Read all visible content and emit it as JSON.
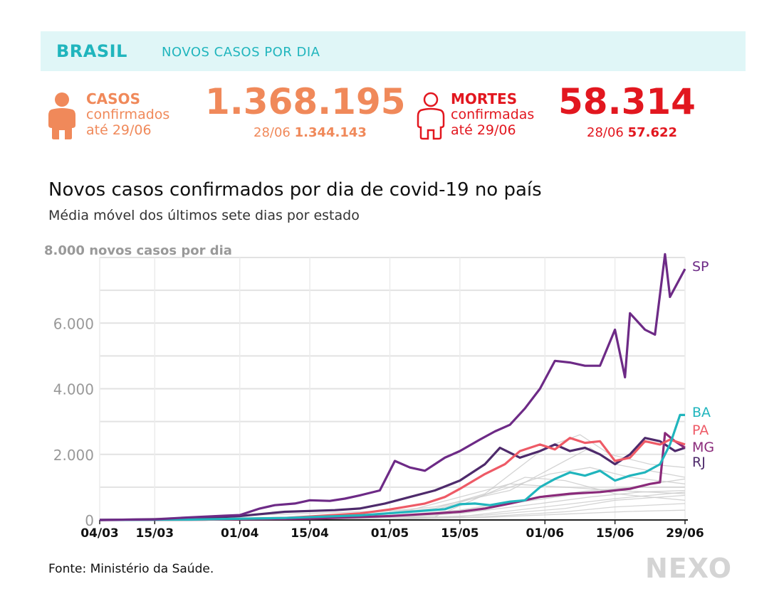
{
  "header": {
    "country": "BRASIL",
    "subtitle": "NOVOS CASOS POR DIA"
  },
  "cases": {
    "label": "CASOS",
    "line2": "confirmados",
    "line3": "até 29/06",
    "total": "1.368.195",
    "prev_date": "28/06",
    "prev_value": "1.344.143",
    "color": "#f0895a",
    "icon": "person-icon"
  },
  "deaths": {
    "label": "MORTES",
    "line2": "confirmadas",
    "line3": "até 29/06",
    "total": "58.314",
    "prev_date": "28/06",
    "prev_value": "57.622",
    "color": "#e2171f",
    "icon": "person-outline-icon"
  },
  "chart": {
    "title": "Novos casos confirmados por dia de covid-19 no país",
    "subtitle": "Média móvel dos últimos sete dias por estado"
  },
  "chart_data": {
    "type": "line",
    "y_unit_label": "8.000 novos casos por dia",
    "ylim": [
      0,
      8000
    ],
    "yticks": [
      {
        "value": 0,
        "label": "0"
      },
      {
        "value": 2000,
        "label": "2.000"
      },
      {
        "value": 4000,
        "label": "4.000"
      },
      {
        "value": 6000,
        "label": "6.000"
      },
      {
        "value": 8000,
        "label": "8.000 novos casos por dia"
      }
    ],
    "x_range": [
      "2020-03-04",
      "2020-06-29"
    ],
    "xticks": [
      {
        "date": "2020-03-04",
        "label": "04/03"
      },
      {
        "date": "2020-03-15",
        "label": "15/03"
      },
      {
        "date": "2020-04-01",
        "label": "01/04"
      },
      {
        "date": "2020-04-15",
        "label": "15/04"
      },
      {
        "date": "2020-05-01",
        "label": "01/05"
      },
      {
        "date": "2020-05-15",
        "label": "15/05"
      },
      {
        "date": "2020-06-01",
        "label": "01/06"
      },
      {
        "date": "2020-06-15",
        "label": "15/06"
      },
      {
        "date": "2020-06-29",
        "label": "29/06"
      }
    ],
    "grid": true,
    "series": [
      {
        "name": "SP",
        "color": "#6d2a86",
        "label_value": 7650,
        "points": [
          [
            "2020-03-04",
            0
          ],
          [
            "2020-03-15",
            20
          ],
          [
            "2020-03-22",
            80
          ],
          [
            "2020-03-29",
            130
          ],
          [
            "2020-04-01",
            150
          ],
          [
            "2020-04-05",
            350
          ],
          [
            "2020-04-08",
            450
          ],
          [
            "2020-04-12",
            500
          ],
          [
            "2020-04-15",
            600
          ],
          [
            "2020-04-19",
            580
          ],
          [
            "2020-04-22",
            650
          ],
          [
            "2020-04-25",
            750
          ],
          [
            "2020-04-29",
            900
          ],
          [
            "2020-05-02",
            1800
          ],
          [
            "2020-05-05",
            1600
          ],
          [
            "2020-05-08",
            1500
          ],
          [
            "2020-05-12",
            1900
          ],
          [
            "2020-05-15",
            2100
          ],
          [
            "2020-05-19",
            2450
          ],
          [
            "2020-05-22",
            2700
          ],
          [
            "2020-05-25",
            2900
          ],
          [
            "2020-05-28",
            3400
          ],
          [
            "2020-05-31",
            4000
          ],
          [
            "2020-06-03",
            4850
          ],
          [
            "2020-06-06",
            4800
          ],
          [
            "2020-06-09",
            4700
          ],
          [
            "2020-06-12",
            4700
          ],
          [
            "2020-06-15",
            5800
          ],
          [
            "2020-06-17",
            4350
          ],
          [
            "2020-06-18",
            6300
          ],
          [
            "2020-06-21",
            5800
          ],
          [
            "2020-06-23",
            5650
          ],
          [
            "2020-06-25",
            8100
          ],
          [
            "2020-06-26",
            6800
          ],
          [
            "2020-06-29",
            7650
          ]
        ]
      },
      {
        "name": "BA",
        "color": "#20b5bd",
        "label_value": 3200,
        "points": [
          [
            "2020-03-04",
            0
          ],
          [
            "2020-03-22",
            10
          ],
          [
            "2020-04-10",
            60
          ],
          [
            "2020-04-25",
            140
          ],
          [
            "2020-05-05",
            250
          ],
          [
            "2020-05-12",
            330
          ],
          [
            "2020-05-15",
            480
          ],
          [
            "2020-05-18",
            500
          ],
          [
            "2020-05-21",
            450
          ],
          [
            "2020-05-25",
            560
          ],
          [
            "2020-05-28",
            600
          ],
          [
            "2020-05-31",
            1000
          ],
          [
            "2020-06-03",
            1250
          ],
          [
            "2020-06-06",
            1450
          ],
          [
            "2020-06-09",
            1350
          ],
          [
            "2020-06-12",
            1500
          ],
          [
            "2020-06-15",
            1200
          ],
          [
            "2020-06-18",
            1350
          ],
          [
            "2020-06-21",
            1450
          ],
          [
            "2020-06-24",
            1700
          ],
          [
            "2020-06-26",
            2300
          ],
          [
            "2020-06-28",
            3200
          ],
          [
            "2020-06-29",
            3200
          ]
        ]
      },
      {
        "name": "PA",
        "color": "#ee5a66",
        "label_value": 2300,
        "points": [
          [
            "2020-03-04",
            0
          ],
          [
            "2020-03-25",
            10
          ],
          [
            "2020-04-10",
            60
          ],
          [
            "2020-04-25",
            200
          ],
          [
            "2020-05-01",
            320
          ],
          [
            "2020-05-08",
            500
          ],
          [
            "2020-05-12",
            700
          ],
          [
            "2020-05-15",
            950
          ],
          [
            "2020-05-20",
            1400
          ],
          [
            "2020-05-24",
            1700
          ],
          [
            "2020-05-27",
            2100
          ],
          [
            "2020-05-31",
            2300
          ],
          [
            "2020-06-03",
            2150
          ],
          [
            "2020-06-06",
            2500
          ],
          [
            "2020-06-09",
            2350
          ],
          [
            "2020-06-12",
            2400
          ],
          [
            "2020-06-15",
            1800
          ],
          [
            "2020-06-18",
            1900
          ],
          [
            "2020-06-21",
            2400
          ],
          [
            "2020-06-24",
            2300
          ],
          [
            "2020-06-26",
            2450
          ],
          [
            "2020-06-29",
            2300
          ]
        ]
      },
      {
        "name": "MG",
        "color": "#8a2a7a",
        "label_value": 2200,
        "points": [
          [
            "2020-03-04",
            0
          ],
          [
            "2020-03-25",
            10
          ],
          [
            "2020-04-15",
            40
          ],
          [
            "2020-05-01",
            120
          ],
          [
            "2020-05-10",
            200
          ],
          [
            "2020-05-15",
            250
          ],
          [
            "2020-05-20",
            350
          ],
          [
            "2020-05-25",
            500
          ],
          [
            "2020-05-31",
            700
          ],
          [
            "2020-06-06",
            800
          ],
          [
            "2020-06-12",
            850
          ],
          [
            "2020-06-18",
            950
          ],
          [
            "2020-06-22",
            1100
          ],
          [
            "2020-06-24",
            1150
          ],
          [
            "2020-06-25",
            2650
          ],
          [
            "2020-06-27",
            2400
          ],
          [
            "2020-06-29",
            2200
          ]
        ]
      },
      {
        "name": "RJ",
        "color": "#4e2a6b",
        "label_value": 2000,
        "points": [
          [
            "2020-03-04",
            0
          ],
          [
            "2020-03-20",
            30
          ],
          [
            "2020-04-01",
            120
          ],
          [
            "2020-04-10",
            250
          ],
          [
            "2020-04-20",
            300
          ],
          [
            "2020-04-25",
            350
          ],
          [
            "2020-04-30",
            500
          ],
          [
            "2020-05-05",
            700
          ],
          [
            "2020-05-10",
            900
          ],
          [
            "2020-05-15",
            1200
          ],
          [
            "2020-05-20",
            1700
          ],
          [
            "2020-05-23",
            2200
          ],
          [
            "2020-05-27",
            1900
          ],
          [
            "2020-05-31",
            2100
          ],
          [
            "2020-06-03",
            2300
          ],
          [
            "2020-06-06",
            2100
          ],
          [
            "2020-06-09",
            2200
          ],
          [
            "2020-06-12",
            2000
          ],
          [
            "2020-06-15",
            1700
          ],
          [
            "2020-06-18",
            2000
          ],
          [
            "2020-06-21",
            2500
          ],
          [
            "2020-06-24",
            2400
          ],
          [
            "2020-06-27",
            2100
          ],
          [
            "2020-06-29",
            2200
          ]
        ]
      }
    ],
    "background_series": [
      [
        [
          "2020-03-04",
          0
        ],
        [
          "2020-04-15",
          60
        ],
        [
          "2020-05-10",
          400
        ],
        [
          "2020-05-25",
          900
        ],
        [
          "2020-06-05",
          1800
        ],
        [
          "2020-06-10",
          2200
        ],
        [
          "2020-06-15",
          1700
        ],
        [
          "2020-06-22",
          1500
        ],
        [
          "2020-06-29",
          1300
        ]
      ],
      [
        [
          "2020-03-04",
          0
        ],
        [
          "2020-04-20",
          80
        ],
        [
          "2020-05-10",
          350
        ],
        [
          "2020-05-20",
          800
        ],
        [
          "2020-06-01",
          2200
        ],
        [
          "2020-06-08",
          2600
        ],
        [
          "2020-06-14",
          2000
        ],
        [
          "2020-06-22",
          1700
        ],
        [
          "2020-06-29",
          1600
        ]
      ],
      [
        [
          "2020-03-04",
          0
        ],
        [
          "2020-04-20",
          40
        ],
        [
          "2020-05-10",
          300
        ],
        [
          "2020-05-25",
          1000
        ],
        [
          "2020-06-02",
          1400
        ],
        [
          "2020-06-10",
          1600
        ],
        [
          "2020-06-18",
          1300
        ],
        [
          "2020-06-29",
          1100
        ]
      ],
      [
        [
          "2020-03-04",
          0
        ],
        [
          "2020-04-25",
          50
        ],
        [
          "2020-05-15",
          300
        ],
        [
          "2020-05-31",
          700
        ],
        [
          "2020-06-10",
          900
        ],
        [
          "2020-06-20",
          1000
        ],
        [
          "2020-06-29",
          1000
        ]
      ],
      [
        [
          "2020-03-04",
          0
        ],
        [
          "2020-04-25",
          30
        ],
        [
          "2020-05-15",
          200
        ],
        [
          "2020-05-31",
          500
        ],
        [
          "2020-06-10",
          700
        ],
        [
          "2020-06-20",
          850
        ],
        [
          "2020-06-29",
          900
        ]
      ],
      [
        [
          "2020-03-04",
          0
        ],
        [
          "2020-04-30",
          30
        ],
        [
          "2020-05-20",
          150
        ],
        [
          "2020-06-05",
          350
        ],
        [
          "2020-06-15",
          600
        ],
        [
          "2020-06-29",
          750
        ]
      ],
      [
        [
          "2020-03-04",
          0
        ],
        [
          "2020-04-30",
          20
        ],
        [
          "2020-05-20",
          100
        ],
        [
          "2020-06-05",
          250
        ],
        [
          "2020-06-15",
          400
        ],
        [
          "2020-06-29",
          500
        ]
      ],
      [
        [
          "2020-03-04",
          0
        ],
        [
          "2020-05-01",
          20
        ],
        [
          "2020-05-20",
          80
        ],
        [
          "2020-06-05",
          180
        ],
        [
          "2020-06-18",
          260
        ],
        [
          "2020-06-29",
          300
        ]
      ],
      [
        [
          "2020-03-04",
          0
        ],
        [
          "2020-05-05",
          300
        ],
        [
          "2020-05-15",
          700
        ],
        [
          "2020-05-25",
          1100
        ],
        [
          "2020-06-05",
          1000
        ],
        [
          "2020-06-15",
          900
        ],
        [
          "2020-06-29",
          800
        ]
      ],
      [
        [
          "2020-03-04",
          0
        ],
        [
          "2020-05-10",
          150
        ],
        [
          "2020-05-25",
          500
        ],
        [
          "2020-06-08",
          800
        ],
        [
          "2020-06-18",
          1000
        ],
        [
          "2020-06-29",
          1250
        ]
      ],
      [
        [
          "2020-03-04",
          0
        ],
        [
          "2020-05-15",
          100
        ],
        [
          "2020-06-01",
          400
        ],
        [
          "2020-06-15",
          650
        ],
        [
          "2020-06-29",
          850
        ]
      ],
      [
        [
          "2020-03-04",
          0
        ],
        [
          "2020-05-10",
          100
        ],
        [
          "2020-05-28",
          1300
        ],
        [
          "2020-06-05",
          1200
        ],
        [
          "2020-06-15",
          800
        ],
        [
          "2020-06-29",
          600
        ]
      ]
    ]
  },
  "footer": {
    "source": "Fonte: Ministério da Saúde.",
    "logo": "NEXO"
  }
}
